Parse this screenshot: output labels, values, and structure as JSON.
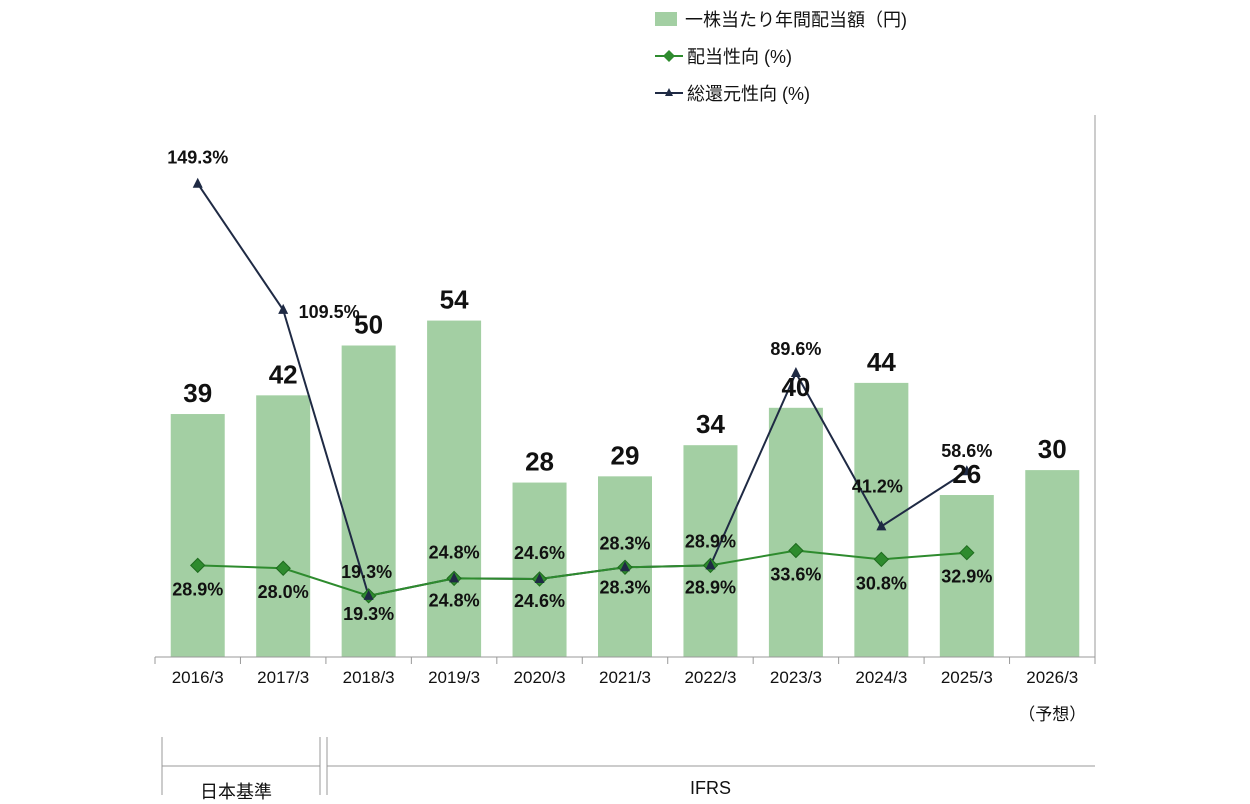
{
  "chart_data": {
    "type": "bar",
    "categories": [
      "2016/3",
      "2017/3",
      "2018/3",
      "2019/3",
      "2020/3",
      "2021/3",
      "2022/3",
      "2023/3",
      "2024/3",
      "2025/3",
      "2026/3"
    ],
    "forecast_note": "（予想）",
    "ylim": [
      0,
      160
    ],
    "grid": false,
    "series": [
      {
        "name": "一株当たり年間配当額（円)",
        "kind": "bar",
        "color": "#a3cfa3",
        "values": [
          39,
          42,
          50,
          54,
          28,
          29,
          34,
          40,
          44,
          26,
          30
        ]
      },
      {
        "name": "配当性向 (%)",
        "kind": "line",
        "marker": "diamond",
        "color": "#2e8b2e",
        "values": [
          28.9,
          28.0,
          19.3,
          24.8,
          24.6,
          28.3,
          28.9,
          33.6,
          30.8,
          32.9,
          null
        ],
        "labels": [
          "28.9%",
          "28.0%",
          "19.3%",
          "24.8%",
          "24.6%",
          "28.3%",
          "28.9%",
          "33.6%",
          "30.8%",
          "32.9%",
          ""
        ]
      },
      {
        "name": "総還元性向 (%)",
        "kind": "line",
        "marker": "triangle",
        "color": "#1f2a44",
        "values": [
          149.3,
          109.5,
          19.3,
          24.8,
          24.6,
          28.3,
          28.9,
          89.6,
          41.2,
          58.6,
          null
        ],
        "labels": [
          "149.3%",
          "109.5%",
          "19.3%",
          "24.8%",
          "24.6%",
          "28.3%",
          "28.9%",
          "89.6%",
          "41.2%",
          "58.6%",
          ""
        ]
      }
    ],
    "legend_position": "top"
  },
  "standards": {
    "japan": "日本基準",
    "ifrs": "IFRS"
  },
  "colors": {
    "bar": "#a3cfa3",
    "payout": "#2e8b2e",
    "total": "#1f2a44",
    "axis": "#999999"
  }
}
